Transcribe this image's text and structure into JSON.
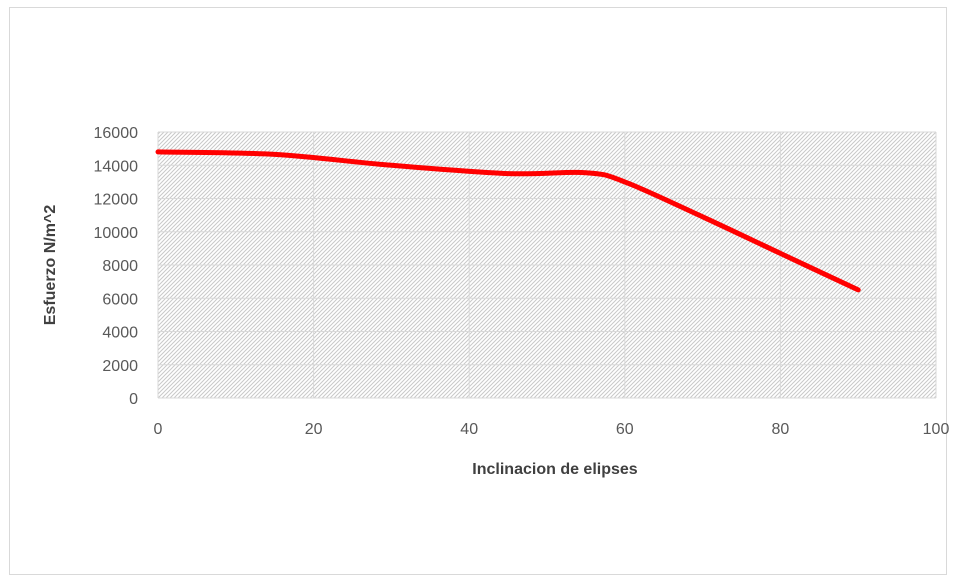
{
  "chart_data": {
    "type": "line",
    "title": "",
    "xlabel": "Inclinacion de elipses",
    "ylabel": "Esfuerzo N/m^2",
    "xlim": [
      0,
      100
    ],
    "ylim": [
      0,
      16000
    ],
    "x_ticks": [
      0,
      20,
      40,
      60,
      80,
      100
    ],
    "y_ticks": [
      0,
      2000,
      4000,
      6000,
      8000,
      10000,
      12000,
      14000,
      16000
    ],
    "grid": true,
    "plot_background": "diagonal-hatch",
    "series": [
      {
        "color": "#ff0000",
        "smooth": true,
        "x": [
          0,
          15,
          30,
          45,
          55,
          60,
          70,
          80,
          90
        ],
        "y": [
          14800,
          14650,
          14000,
          13500,
          13550,
          13000,
          10900,
          8700,
          6500
        ]
      }
    ]
  },
  "colors": {
    "line": "#ff0000",
    "grid": "#d9d9d9",
    "hatch": "#c8c8c8",
    "tick_text": "#595959",
    "title_text": "#404040"
  }
}
